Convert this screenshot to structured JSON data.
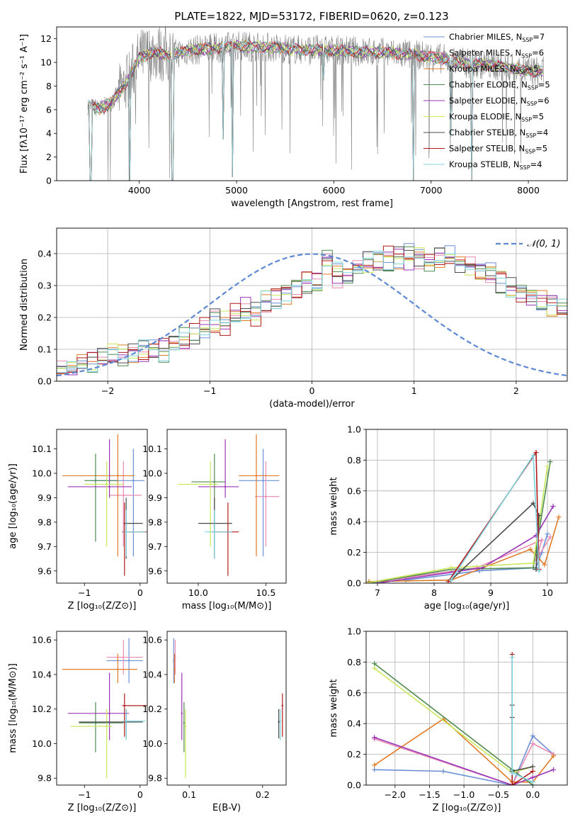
{
  "title": "PLATE=1822, MJD=53172, FIBERID=0620, z=0.123",
  "palette": {
    "Chabrier MILES": "#6b8fd6",
    "Salpeter MILES": "#e98bb4",
    "Kroupa MILES": "#e07b28",
    "Chabrier ELODIE": "#4f8a4f",
    "Salpeter ELODIE": "#9a35b8",
    "Kroupa ELODIE": "#c9e85c",
    "Chabrier STELIB": "#4a4a4a",
    "Salpeter STELIB": "#b01a1a",
    "Kroupa STELIB": "#7fd3de",
    "data": "#808080",
    "gauss": "#5b87d4"
  },
  "chart_data": [
    {
      "id": "spectrum",
      "type": "line",
      "xlabel": "wavelength [Angstrom, rest frame]",
      "ylabel": "Flux [fλ10⁻¹⁷ erg cm⁻² s⁻¹ A⁻¹]",
      "xlim": [
        3150,
        8400
      ],
      "ylim": [
        0,
        13
      ],
      "xticks": [
        4000,
        5000,
        6000,
        7000,
        8000
      ],
      "yticks": [
        0,
        2,
        4,
        6,
        8,
        10,
        12
      ],
      "legend_position": "right",
      "legend": [
        {
          "base": "Chabrier MILES, N",
          "sub": "SSP",
          "tail": "=7"
        },
        {
          "base": "Salpeter MILES, N",
          "sub": "SSP",
          "tail": "=6"
        },
        {
          "base": "Kroupa MILES, N",
          "sub": "SSP",
          "tail": "=5"
        },
        {
          "base": "Chabrier ELODIE, N",
          "sub": "SSP",
          "tail": "=5"
        },
        {
          "base": "Salpeter ELODIE, N",
          "sub": "SSP",
          "tail": "=6"
        },
        {
          "base": "Kroupa ELODIE, N",
          "sub": "SSP",
          "tail": "=5"
        },
        {
          "base": "Chabrier STELIB, N",
          "sub": "SSP",
          "tail": "=4"
        },
        {
          "base": "Salpeter STELIB, N",
          "sub": "SSP",
          "tail": "=5"
        },
        {
          "base": "Kroupa STELIB, N",
          "sub": "SSP",
          "tail": "=4"
        }
      ],
      "continuum": [
        [
          3470,
          6.3
        ],
        [
          3600,
          6.1
        ],
        [
          3700,
          6.5
        ],
        [
          3800,
          7.5
        ],
        [
          3900,
          8.7
        ],
        [
          4000,
          10.4
        ],
        [
          4150,
          10.9
        ],
        [
          4300,
          10.6
        ],
        [
          4500,
          11.0
        ],
        [
          4800,
          11.2
        ],
        [
          5000,
          11.4
        ],
        [
          5300,
          11.3
        ],
        [
          5600,
          11.1
        ],
        [
          6000,
          11.0
        ],
        [
          6300,
          10.9
        ],
        [
          6600,
          10.8
        ],
        [
          7000,
          10.5
        ],
        [
          7300,
          10.0
        ],
        [
          7700,
          9.7
        ],
        [
          8000,
          9.3
        ],
        [
          8160,
          9.2
        ]
      ],
      "dips": [
        [
          3500,
          0.0
        ],
        [
          3900,
          0.0
        ],
        [
          4340,
          0.0
        ],
        [
          4863,
          3.5
        ],
        [
          4960,
          0.3
        ],
        [
          5890,
          8.5
        ],
        [
          6820,
          0.0
        ],
        [
          7200,
          3.7
        ],
        [
          7420,
          0.0
        ]
      ]
    },
    {
      "id": "residuals",
      "type": "bar",
      "xlabel": "(data-model)/error",
      "ylabel": "Normed distribution",
      "xlim": [
        -2.5,
        2.5
      ],
      "ylim": [
        0,
        0.48
      ],
      "xticks": [
        -2,
        -1,
        0,
        1,
        2
      ],
      "yticks": [
        0.0,
        0.1,
        0.2,
        0.3,
        0.4
      ],
      "legend_position": "top-right",
      "legend_label": "𝒩(0, 1)",
      "bin_width": 0.1,
      "bins_start": -2.5,
      "series_base": [
        0.04,
        0.035,
        0.05,
        0.06,
        0.075,
        0.08,
        0.075,
        0.09,
        0.095,
        0.1,
        0.095,
        0.12,
        0.13,
        0.15,
        0.165,
        0.19,
        0.18,
        0.21,
        0.225,
        0.215,
        0.245,
        0.26,
        0.28,
        0.29,
        0.315,
        0.305,
        0.32,
        0.335,
        0.34,
        0.365,
        0.37,
        0.375,
        0.38,
        0.385,
        0.39,
        0.39,
        0.38,
        0.39,
        0.39,
        0.375,
        0.36,
        0.35,
        0.335,
        0.32,
        0.29,
        0.28,
        0.27,
        0.255,
        0.245,
        0.23
      ]
    },
    {
      "id": "age_vs_Z",
      "type": "scatter",
      "xlabel": "Z [log₁₀(Z/Z⊙)]",
      "ylabel": "age  [log₁₀(age/yr)]",
      "xlim": [
        -1.5,
        0.13
      ],
      "ylim": [
        9.55,
        10.18
      ],
      "xticks": [
        -1,
        0
      ],
      "yticks": [
        9.6,
        9.7,
        9.8,
        9.9,
        10.0,
        10.1
      ],
      "points": [
        {
          "model": "Chabrier MILES",
          "x": -0.12,
          "y": 9.97,
          "xe": [
            -0.9,
            0.08
          ],
          "ye": [
            9.66,
            10.1
          ]
        },
        {
          "model": "Salpeter MILES",
          "x": -0.3,
          "y": 9.91,
          "xe": [
            -0.55,
            0.03
          ],
          "ye": [
            9.7,
            10.05
          ]
        },
        {
          "model": "Kroupa MILES",
          "x": -0.4,
          "y": 9.99,
          "xe": [
            -1.4,
            -0.1
          ],
          "ye": [
            9.66,
            10.16
          ]
        },
        {
          "model": "Chabrier ELODIE",
          "x": -0.8,
          "y": 9.97,
          "xe": [
            -1.0,
            -0.4
          ],
          "ye": [
            9.72,
            10.08
          ]
        },
        {
          "model": "Salpeter ELODIE",
          "x": -0.55,
          "y": 9.945,
          "xe": [
            -1.3,
            -0.15
          ],
          "ye": [
            9.9,
            10.14
          ]
        },
        {
          "model": "Kroupa ELODIE",
          "x": -0.6,
          "y": 9.955,
          "xe": [
            -1.0,
            -0.3
          ],
          "ye": [
            9.7,
            10.05
          ]
        },
        {
          "model": "Chabrier STELIB",
          "x": -0.25,
          "y": 9.795,
          "xe": [
            -0.3,
            0.05
          ],
          "ye": [
            9.65,
            9.9
          ]
        },
        {
          "model": "Salpeter STELIB",
          "x": -0.28,
          "y": 9.76,
          "xe": [
            -0.32,
            0.12
          ],
          "ye": [
            9.58,
            9.88
          ]
        },
        {
          "model": "Kroupa STELIB",
          "x": -0.25,
          "y": 9.76,
          "xe": [
            -0.3,
            0.1
          ],
          "ye": [
            9.66,
            9.85
          ]
        }
      ]
    },
    {
      "id": "age_vs_mass",
      "type": "scatter",
      "xlabel": "mass [log₁₀(M/M⊙)]",
      "ylabel": "",
      "xlim": [
        9.77,
        10.65
      ],
      "ylim": [
        9.55,
        10.18
      ],
      "xticks": [
        10.0,
        10.5
      ],
      "yticks": [
        9.6,
        9.7,
        9.8,
        9.9,
        10.0,
        10.1
      ],
      "points": [
        {
          "model": "Chabrier MILES",
          "x": 10.48,
          "y": 9.97,
          "xe": [
            10.3,
            10.6
          ],
          "ye": [
            9.66,
            10.1
          ]
        },
        {
          "model": "Salpeter MILES",
          "x": 10.5,
          "y": 9.905,
          "xe": [
            10.42,
            10.6
          ],
          "ye": [
            9.7,
            10.05
          ]
        },
        {
          "model": "Kroupa MILES",
          "x": 10.43,
          "y": 9.99,
          "xe": [
            10.3,
            10.6
          ],
          "ye": [
            9.66,
            10.16
          ]
        },
        {
          "model": "Chabrier ELODIE",
          "x": 10.12,
          "y": 9.965,
          "xe": [
            9.95,
            10.2
          ],
          "ye": [
            9.72,
            10.08
          ]
        },
        {
          "model": "Salpeter ELODIE",
          "x": 10.2,
          "y": 9.945,
          "xe": [
            10.0,
            10.3
          ],
          "ye": [
            9.9,
            10.14
          ]
        },
        {
          "model": "Kroupa ELODIE",
          "x": 10.09,
          "y": 9.955,
          "xe": [
            9.85,
            10.15
          ],
          "ye": [
            9.7,
            10.05
          ]
        },
        {
          "model": "Chabrier STELIB",
          "x": 10.12,
          "y": 9.795,
          "xe": [
            10.0,
            10.25
          ],
          "ye": [
            9.65,
            9.9
          ]
        },
        {
          "model": "Salpeter STELIB",
          "x": 10.22,
          "y": 9.76,
          "xe": [
            10.1,
            10.3
          ],
          "ye": [
            9.58,
            9.88
          ]
        },
        {
          "model": "Kroupa STELIB",
          "x": 10.12,
          "y": 9.76,
          "xe": [
            10.05,
            10.25
          ],
          "ye": [
            9.65,
            9.85
          ]
        }
      ]
    },
    {
      "id": "mass_weight_vs_age",
      "type": "line",
      "xlabel": "age  [log₁₀(age/yr)]",
      "ylabel": "mass weight",
      "xlim": [
        6.8,
        10.35
      ],
      "ylim": [
        0,
        1.0
      ],
      "xticks": [
        7,
        8,
        9,
        10
      ],
      "yticks": [
        0.0,
        0.2,
        0.4,
        0.6,
        0.8,
        1.0
      ],
      "series": [
        {
          "model": "Chabrier MILES",
          "x": [
            7.5,
            8.8,
            9.8,
            9.9,
            10.0
          ],
          "y": [
            0.02,
            0.08,
            0.1,
            0.2,
            0.32
          ]
        },
        {
          "model": "Salpeter MILES",
          "x": [
            7.0,
            8.75,
            9.9,
            9.8,
            10.05
          ],
          "y": [
            0.01,
            0.1,
            0.28,
            0.15,
            0.3
          ]
        },
        {
          "model": "Kroupa MILES",
          "x": [
            6.85,
            8.3,
            9.7,
            9.95,
            10.2
          ],
          "y": [
            0.01,
            0.02,
            0.22,
            0.12,
            0.43
          ]
        },
        {
          "model": "Chabrier ELODIE",
          "x": [
            6.85,
            8.3,
            9.75,
            10.05
          ],
          "y": [
            0.0,
            0.09,
            0.1,
            0.79
          ]
        },
        {
          "model": "Salpeter ELODIE",
          "x": [
            7.0,
            8.85,
            9.8,
            10.1
          ],
          "y": [
            0.0,
            0.1,
            0.31,
            0.5
          ]
        },
        {
          "model": "Kroupa ELODIE",
          "x": [
            6.8,
            8.3,
            9.75,
            10.0
          ],
          "y": [
            0.0,
            0.1,
            0.13,
            0.76
          ]
        },
        {
          "model": "Chabrier STELIB",
          "x": [
            8.3,
            9.75,
            9.85,
            9.8
          ],
          "y": [
            0.02,
            0.52,
            0.44,
            0.09
          ]
        },
        {
          "model": "Salpeter STELIB",
          "x": [
            8.25,
            9.8,
            9.85
          ],
          "y": [
            0.01,
            0.85,
            0.09
          ]
        },
        {
          "model": "Kroupa STELIB",
          "x": [
            8.3,
            9.75,
            9.85
          ],
          "y": [
            0.02,
            0.83,
            0.08
          ]
        }
      ]
    },
    {
      "id": "mass_vs_Z",
      "type": "scatter",
      "xlabel": "Z [log₁₀(Z/Z⊙)]",
      "ylabel": "mass [log₁₀(M/M⊙)]",
      "xlim": [
        -1.5,
        0.13
      ],
      "ylim": [
        9.76,
        10.65
      ],
      "xticks": [
        -1,
        0
      ],
      "yticks": [
        9.8,
        10.0,
        10.2,
        10.4,
        10.6
      ],
      "points": [
        {
          "model": "Chabrier MILES",
          "x": -0.2,
          "y": 10.48,
          "xe": [
            -0.6,
            0.05
          ],
          "ye": [
            10.35,
            10.61
          ]
        },
        {
          "model": "Salpeter MILES",
          "x": -0.3,
          "y": 10.5,
          "xe": [
            -0.6,
            0.05
          ],
          "ye": [
            10.4,
            10.6
          ]
        },
        {
          "model": "Kroupa MILES",
          "x": -0.4,
          "y": 10.43,
          "xe": [
            -1.4,
            -0.05
          ],
          "ye": [
            10.35,
            10.52
          ]
        },
        {
          "model": "Chabrier ELODIE",
          "x": -0.8,
          "y": 10.12,
          "xe": [
            -1.1,
            -0.3
          ],
          "ye": [
            9.95,
            10.24
          ]
        },
        {
          "model": "Salpeter ELODIE",
          "x": -0.55,
          "y": 10.175,
          "xe": [
            -1.3,
            -0.2
          ],
          "ye": [
            10.02,
            10.41
          ]
        },
        {
          "model": "Kroupa ELODIE",
          "x": -0.6,
          "y": 10.1,
          "xe": [
            -1.25,
            -0.5
          ],
          "ye": [
            9.8,
            10.2
          ]
        },
        {
          "model": "Chabrier STELIB",
          "x": -0.25,
          "y": 10.125,
          "xe": [
            -1.1,
            0.05
          ],
          "ye": [
            10.03,
            10.2
          ]
        },
        {
          "model": "Salpeter STELIB",
          "x": -0.28,
          "y": 10.22,
          "xe": [
            -0.32,
            0.12
          ],
          "ye": [
            10.04,
            10.29
          ]
        },
        {
          "model": "Kroupa STELIB",
          "x": -0.25,
          "y": 10.13,
          "xe": [
            -0.3,
            0.1
          ],
          "ye": [
            10.02,
            10.2
          ]
        }
      ]
    },
    {
      "id": "mass_vs_EBV",
      "type": "scatter",
      "xlabel": "E(B-V)",
      "ylabel": "",
      "xlim": [
        0.07,
        0.232
      ],
      "ylim": [
        9.76,
        10.65
      ],
      "xticks": [
        0.1,
        0.2
      ],
      "yticks": [
        9.8,
        10.0,
        10.2,
        10.4,
        10.6
      ],
      "points": [
        {
          "model": "Chabrier MILES",
          "x": 0.079,
          "y": 10.48,
          "ye": [
            10.35,
            10.61
          ]
        },
        {
          "model": "Salpeter MILES",
          "x": 0.081,
          "y": 10.5,
          "ye": [
            10.4,
            10.6
          ]
        },
        {
          "model": "Kroupa MILES",
          "x": 0.08,
          "y": 10.43,
          "ye": [
            10.35,
            10.52
          ]
        },
        {
          "model": "Chabrier ELODIE",
          "x": 0.093,
          "y": 10.12,
          "ye": [
            9.95,
            10.24
          ]
        },
        {
          "model": "Salpeter ELODIE",
          "x": 0.09,
          "y": 10.175,
          "ye": [
            10.02,
            10.41
          ]
        },
        {
          "model": "Kroupa ELODIE",
          "x": 0.095,
          "y": 10.1,
          "ye": [
            9.8,
            10.2
          ]
        },
        {
          "model": "Chabrier STELIB",
          "x": 0.222,
          "y": 10.125,
          "ye": [
            10.03,
            10.2
          ]
        },
        {
          "model": "Salpeter STELIB",
          "x": 0.227,
          "y": 10.22,
          "ye": [
            10.04,
            10.29
          ]
        },
        {
          "model": "Kroupa STELIB",
          "x": 0.224,
          "y": 10.13,
          "ye": [
            10.02,
            10.2
          ]
        }
      ]
    },
    {
      "id": "mass_weight_vs_Z",
      "type": "line",
      "xlabel": "Z [log₁₀(Z/Z⊙)]",
      "ylabel": "mass weight",
      "xlim": [
        -2.42,
        0.5
      ],
      "ylim": [
        0,
        1.0
      ],
      "xticks": [
        -2.0,
        -1.5,
        -1.0,
        -0.5,
        0.0
      ],
      "yticks": [
        0.0,
        0.2,
        0.4,
        0.6,
        0.8,
        1.0
      ],
      "series": [
        {
          "model": "Chabrier MILES",
          "x": [
            -2.3,
            -1.3,
            -0.3,
            0.0,
            0.3
          ],
          "y": [
            0.1,
            0.09,
            0.0,
            0.32,
            0.2
          ]
        },
        {
          "model": "Salpeter MILES",
          "x": [
            -2.3,
            -0.3,
            0.0,
            0.3
          ],
          "y": [
            0.3,
            0.0,
            0.27,
            0.2
          ]
        },
        {
          "model": "Kroupa MILES",
          "x": [
            -2.3,
            -1.3,
            -0.3,
            0.0,
            0.3
          ],
          "y": [
            0.13,
            0.43,
            0.02,
            0.02,
            0.19
          ]
        },
        {
          "model": "Chabrier ELODIE",
          "x": [
            -2.3,
            -0.3,
            0.0
          ],
          "y": [
            0.79,
            0.1,
            0.0
          ]
        },
        {
          "model": "Salpeter ELODIE",
          "x": [
            -2.3,
            -0.3,
            0.0,
            0.3
          ],
          "y": [
            0.31,
            0.0,
            0.05,
            0.1
          ]
        },
        {
          "model": "Kroupa ELODIE",
          "x": [
            -2.3,
            -0.3,
            0.0
          ],
          "y": [
            0.76,
            0.08,
            0.12
          ]
        },
        {
          "model": "Chabrier STELIB",
          "x": [
            -0.3,
            -0.3,
            -0.3,
            0.0
          ],
          "y": [
            0.52,
            0.44,
            0.09,
            0.12
          ]
        },
        {
          "model": "Salpeter STELIB",
          "x": [
            -0.3,
            -0.3,
            0.0
          ],
          "y": [
            0.85,
            0.0,
            0.09
          ]
        },
        {
          "model": "Kroupa STELIB",
          "x": [
            -0.3,
            -0.3,
            0.0
          ],
          "y": [
            0.83,
            0.08,
            0.02
          ]
        }
      ]
    }
  ]
}
